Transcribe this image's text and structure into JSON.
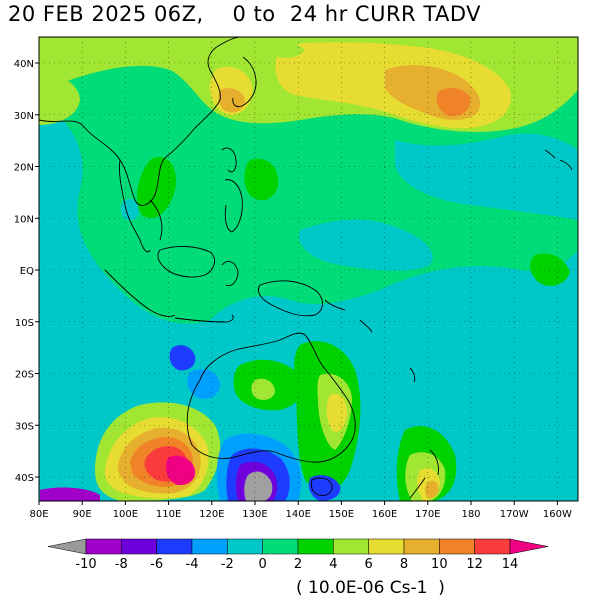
{
  "title": {
    "date": "20 FEB 2025 06Z,",
    "range": "0 to  24 hr CURR TADV"
  },
  "axes": {
    "lon_labels": [
      "80E",
      "90E",
      "100E",
      "110E",
      "120E",
      "130E",
      "140E",
      "150E",
      "160E",
      "170E",
      "180",
      "170W",
      "160W"
    ],
    "lat_labels": [
      "40N",
      "30N",
      "20N",
      "10N",
      "EQ",
      "10S",
      "20S",
      "30S",
      "40S"
    ]
  },
  "colorbar": {
    "labels": [
      "-10",
      "-8",
      "-6",
      "-4",
      "-2",
      "0",
      "2",
      "4",
      "6",
      "8",
      "10",
      "12",
      "14"
    ],
    "colors": [
      "#9a9a9a",
      "#a000c8",
      "#6e00dc",
      "#1e3cff",
      "#00a0ff",
      "#00c8c8",
      "#00dc78",
      "#00d200",
      "#a0e632",
      "#e6dc32",
      "#e6af2d",
      "#f08228",
      "#fa3c3c",
      "#f00082"
    ],
    "units": "( 10.0E-06 Cs-1  )"
  },
  "colors": {
    "background": "#00dc78"
  }
}
